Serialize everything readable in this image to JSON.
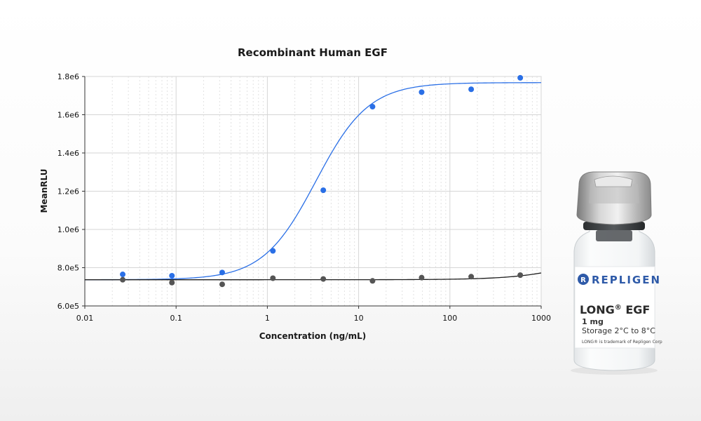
{
  "chart_data": {
    "type": "scatter",
    "title": "Recombinant Human EGF",
    "xlabel": "Concentration (ng/mL)",
    "ylabel": "MeanRLU",
    "xscale": "log",
    "xlim": [
      0.01,
      1000
    ],
    "ylim": [
      600000,
      1800000
    ],
    "x_ticks": [
      0.01,
      0.1,
      1,
      10,
      100,
      1000
    ],
    "x_tick_labels": [
      "0.01",
      "0.1",
      "1",
      "10",
      "100",
      "1000"
    ],
    "y_ticks": [
      600000,
      800000,
      1000000,
      1200000,
      1400000,
      1600000,
      1800000
    ],
    "y_tick_labels": [
      "6.0e5",
      "8.0e5",
      "1.0e6",
      "1.2e6",
      "1.4e6",
      "1.6e6",
      "1.8e6"
    ],
    "grid": true,
    "legend": "none",
    "series": [
      {
        "color": "#2a6fe6",
        "x": [
          0.026,
          0.09,
          0.32,
          1.15,
          4.1,
          14.2,
          49,
          171,
          590
        ],
        "y": [
          765000,
          758000,
          775000,
          888000,
          1205000,
          1642000,
          1718000,
          1733000,
          1793000
        ],
        "fit": {
          "model": "4PL",
          "bottom": 737000,
          "top": 1768000,
          "ec50": 3.4,
          "hill": 1.5
        }
      },
      {
        "color": "#555555",
        "x": [
          0.026,
          0.09,
          0.32,
          1.15,
          4.1,
          14.2,
          49,
          171,
          590
        ],
        "y": [
          737000,
          722000,
          713000,
          745000,
          741000,
          731000,
          748000,
          753000,
          761000
        ],
        "fit": {
          "model": "4PL",
          "bottom": 737000,
          "top": 960000,
          "ec50": 4000,
          "hill": 1.2
        }
      }
    ]
  },
  "product": {
    "brand": "REPLIGEN",
    "name": "LONG",
    "mark": "®",
    "name_suffix": " EGF",
    "amount": "1 mg",
    "storage": "Storage 2°C to 8°C",
    "trademark": "LONG® is trademark of Repligen Corp"
  }
}
